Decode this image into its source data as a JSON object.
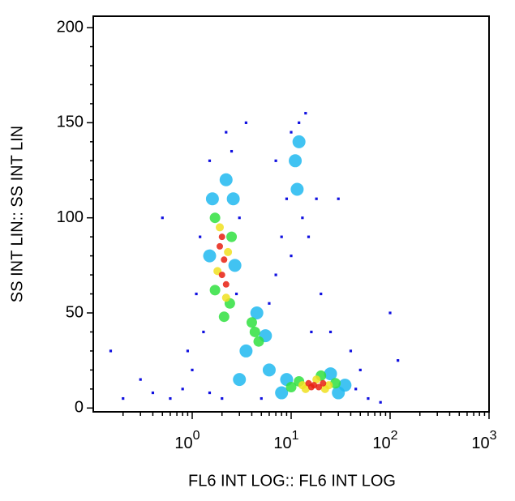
{
  "chart_data": {
    "type": "scatter",
    "x_label": "FL6 INT LOG:: FL6 INT LOG",
    "y_label": "SS INT LIN:: SS INT LIN",
    "xscale": "log",
    "xlim": [
      0.1,
      1000
    ],
    "ylim": [
      -2,
      206
    ],
    "xticks": [
      {
        "value": 1,
        "label": "10",
        "exponent": "0"
      },
      {
        "value": 10,
        "label": "10",
        "exponent": "1"
      },
      {
        "value": 100,
        "label": "10",
        "exponent": "2"
      },
      {
        "value": 1000,
        "label": "10",
        "exponent": "3"
      }
    ],
    "yticks": [
      0,
      50,
      100,
      150,
      200
    ],
    "series": [
      {
        "color": "#1010e0",
        "x": [
          1.5,
          2.5,
          2.2,
          1.2,
          1.1,
          3,
          2.8,
          1.3,
          1,
          0.8,
          0.6,
          0.4,
          0.3,
          0.2,
          12,
          10,
          14,
          9,
          8,
          7,
          6,
          10,
          15,
          20,
          25,
          40,
          50,
          45,
          60,
          80,
          100,
          120,
          0.5,
          0.15,
          30,
          13,
          3.5,
          5,
          2,
          1.5,
          0.9,
          16,
          18,
          7
        ],
        "values": [
          130,
          135,
          145,
          90,
          60,
          100,
          60,
          40,
          20,
          10,
          5,
          8,
          15,
          5,
          150,
          145,
          155,
          110,
          90,
          70,
          55,
          80,
          90,
          60,
          40,
          30,
          20,
          10,
          5,
          3,
          50,
          25,
          100,
          30,
          110,
          100,
          150,
          5,
          5,
          8,
          30,
          40,
          110,
          130
        ]
      },
      {
        "color": "#20b8f0",
        "x": [
          1.6,
          2.6,
          1.5,
          2.7,
          2.2,
          3.5,
          5.5,
          4.5,
          11,
          12,
          11.5,
          8,
          35,
          30,
          25,
          9,
          3,
          6
        ],
        "values": [
          110,
          110,
          80,
          75,
          120,
          30,
          38,
          50,
          130,
          140,
          115,
          8,
          12,
          8,
          18,
          15,
          15,
          20
        ]
      },
      {
        "color": "#30e040",
        "x": [
          1.7,
          2.4,
          1.7,
          2.5,
          2.1,
          4.3,
          4.7,
          10,
          28,
          20,
          12,
          4
        ],
        "values": [
          100,
          55,
          62,
          90,
          48,
          40,
          35,
          11,
          13,
          17,
          14,
          45
        ]
      },
      {
        "color": "#f0e020",
        "x": [
          1.9,
          2.2,
          1.8,
          2.3,
          13,
          24,
          18,
          14,
          22
        ],
        "values": [
          95,
          58,
          72,
          82,
          12,
          12,
          15,
          10,
          10
        ]
      },
      {
        "color": "#e82010",
        "x": [
          2,
          2.1,
          1.9,
          2.2,
          2,
          17,
          15,
          19,
          21,
          16
        ],
        "values": [
          70,
          78,
          85,
          65,
          90,
          12,
          13,
          11,
          13,
          11
        ]
      }
    ]
  }
}
